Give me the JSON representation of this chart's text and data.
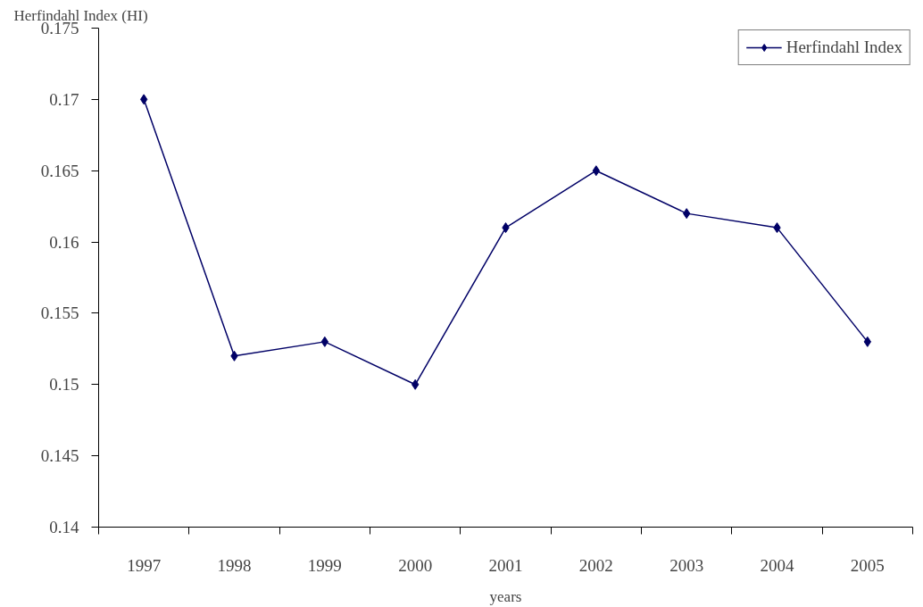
{
  "chart_data": {
    "type": "line",
    "xlabel": "years",
    "ylabel": "Herfindahl Index (HI)",
    "categories": [
      "1997",
      "1998",
      "1999",
      "2000",
      "2001",
      "2002",
      "2003",
      "2004",
      "2005"
    ],
    "series": [
      {
        "name": "Herfindahl Index",
        "color": "#000066",
        "values": [
          0.17,
          0.152,
          0.153,
          0.15,
          0.161,
          0.165,
          0.162,
          0.161,
          0.153
        ]
      }
    ],
    "ylim": [
      0.14,
      0.175
    ],
    "yticks": [
      0.14,
      0.145,
      0.15,
      0.155,
      0.16,
      0.165,
      0.17,
      0.175
    ],
    "grid": false,
    "legend": "top right",
    "marker": "diamond",
    "line_style": "solid"
  }
}
